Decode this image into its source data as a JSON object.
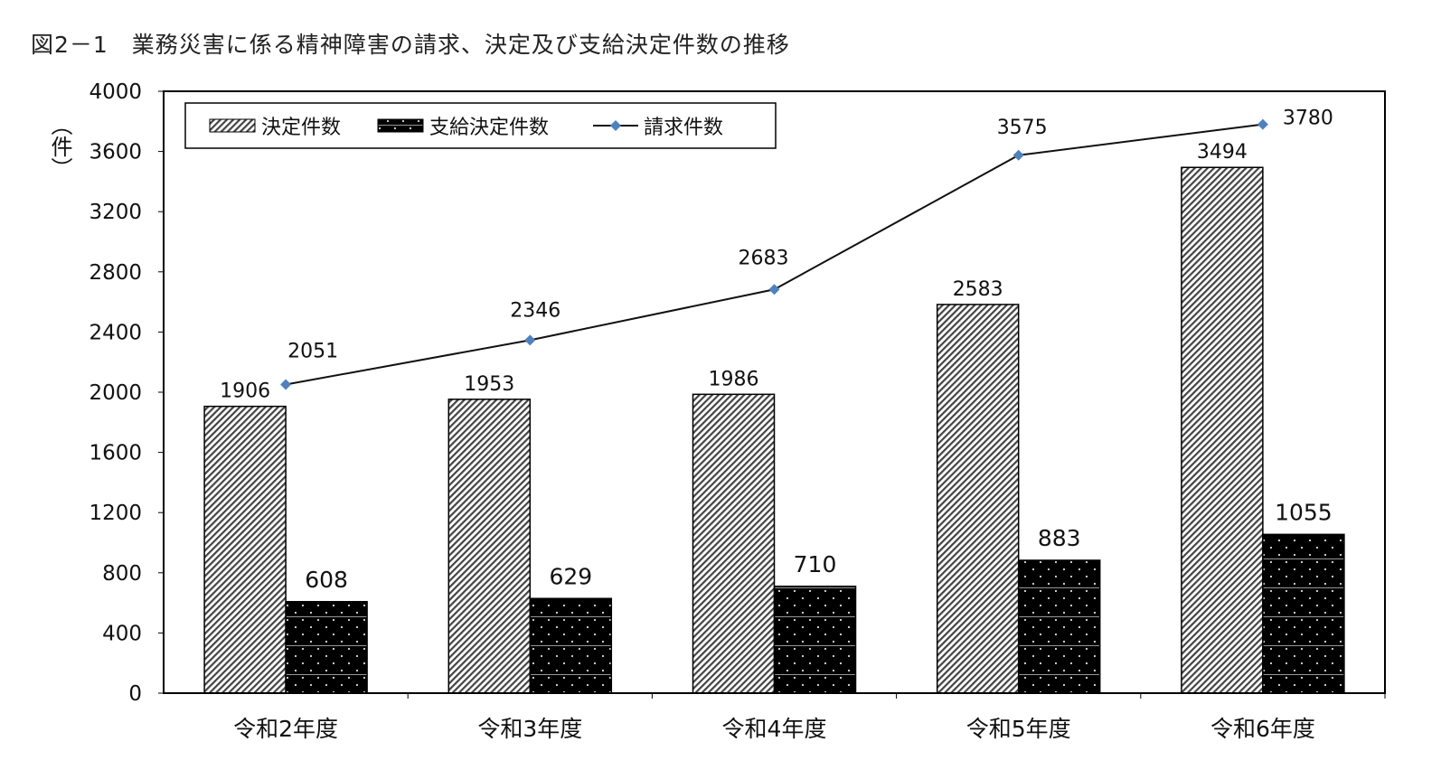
{
  "chart_data": {
    "type": "bar",
    "title": "図2－1　業務災害に係る精神障害の請求、決定及び支給決定件数の推移",
    "ylabel": "（件）",
    "xlabel": "",
    "ylim": [
      0,
      4000
    ],
    "yticks": [
      "0",
      "400",
      "800",
      "1200",
      "1600",
      "2000",
      "2400",
      "2800",
      "3200",
      "3600",
      "4000"
    ],
    "categories": [
      "令和2年度",
      "令和3年度",
      "令和4年度",
      "令和5年度",
      "令和6年度"
    ],
    "series": [
      {
        "name": "決定件数",
        "type": "bar",
        "values": [
          1906,
          1953,
          1986,
          2583,
          3494
        ]
      },
      {
        "name": "支給決定件数",
        "type": "bar",
        "values": [
          608,
          629,
          710,
          883,
          1055
        ]
      },
      {
        "name": "請求件数",
        "type": "line",
        "values": [
          2051,
          2346,
          2683,
          3575,
          3780
        ],
        "color": "#4f81bd"
      }
    ],
    "legend_position": "top-left",
    "grid": false
  }
}
